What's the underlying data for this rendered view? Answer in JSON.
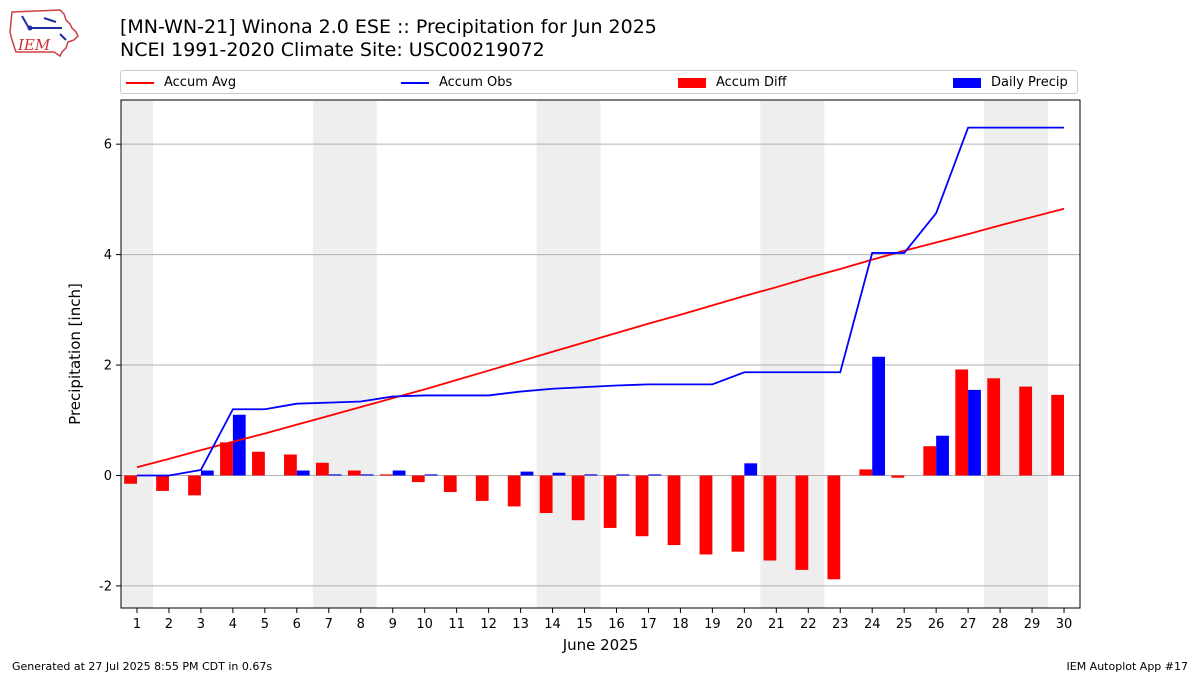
{
  "title_line1": "[MN-WN-21] Winona 2.0 ESE :: Precipitation for Jun 2025",
  "title_line2": "NCEI 1991-2020 Climate Site: USC00219072",
  "logo_text": "IEM",
  "footer_left": "Generated at 27 Jul 2025 8:55 PM CDT in 0.67s",
  "footer_right": "IEM Autoplot App #17",
  "colors": {
    "avg": "#ff0000",
    "obs": "#0000ff",
    "diff": "#ff0000",
    "daily": "#0000ff",
    "weekend": "#eeeeee",
    "grid": "#b0b0b0"
  },
  "chart_data": {
    "type": "bar+line",
    "xlabel": "June 2025",
    "ylabel": "Precipitation [inch]",
    "xlim": [
      0.5,
      30.5
    ],
    "ylim": [
      -2.4,
      6.8
    ],
    "yticks": [
      -2,
      0,
      2,
      4,
      6
    ],
    "grid": "y",
    "legend_position": "top",
    "days": [
      1,
      2,
      3,
      4,
      5,
      6,
      7,
      8,
      9,
      10,
      11,
      12,
      13,
      14,
      15,
      16,
      17,
      18,
      19,
      20,
      21,
      22,
      23,
      24,
      25,
      26,
      27,
      28,
      29,
      30
    ],
    "weekend_days": [
      1,
      7,
      8,
      14,
      15,
      21,
      22,
      28,
      29
    ],
    "series": [
      {
        "name": "Accum Avg",
        "kind": "line",
        "values": [
          0.15,
          0.3,
          0.46,
          0.61,
          0.76,
          0.92,
          1.08,
          1.24,
          1.4,
          1.56,
          1.73,
          1.9,
          2.07,
          2.24,
          2.41,
          2.58,
          2.75,
          2.91,
          3.08,
          3.25,
          3.41,
          3.58,
          3.74,
          3.91,
          4.07,
          4.22,
          4.37,
          4.53,
          4.68,
          4.83
        ]
      },
      {
        "name": "Accum Obs",
        "kind": "line",
        "values": [
          0.0,
          0.0,
          0.1,
          1.2,
          1.2,
          1.3,
          1.32,
          1.34,
          1.43,
          1.45,
          1.45,
          1.45,
          1.52,
          1.57,
          1.6,
          1.63,
          1.65,
          1.65,
          1.65,
          1.87,
          1.87,
          1.87,
          1.87,
          4.03,
          4.03,
          4.75,
          6.3,
          6.3,
          6.3,
          6.3
        ]
      },
      {
        "name": "Accum Diff",
        "kind": "bar",
        "values": [
          -0.15,
          -0.28,
          -0.36,
          0.6,
          0.43,
          0.38,
          0.23,
          0.09,
          0.02,
          -0.12,
          -0.3,
          -0.46,
          -0.56,
          -0.68,
          -0.81,
          -0.95,
          -1.1,
          -1.26,
          -1.43,
          -1.38,
          -1.54,
          -1.71,
          -1.88,
          0.11,
          -0.04,
          0.53,
          1.92,
          1.76,
          1.61,
          1.46
        ]
      },
      {
        "name": "Daily Precip",
        "kind": "bar",
        "values": [
          0.0,
          0.0,
          0.09,
          1.1,
          0.0,
          0.09,
          0.02,
          0.02,
          0.09,
          0.02,
          0.0,
          0.0,
          0.07,
          0.05,
          0.02,
          0.02,
          0.02,
          0.0,
          0.0,
          0.22,
          0.0,
          0.0,
          0.0,
          2.15,
          0.0,
          0.72,
          1.55,
          0.0,
          0.0,
          0.0
        ]
      }
    ]
  }
}
